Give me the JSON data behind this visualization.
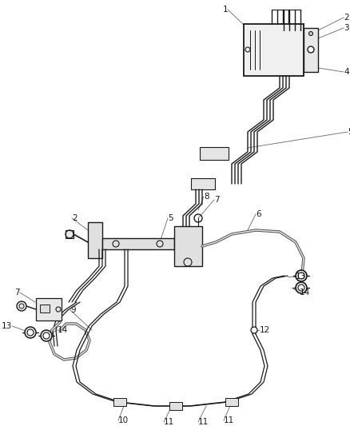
{
  "bg_color": "#ffffff",
  "line_color": "#1a1a1a",
  "figsize": [
    4.38,
    5.33
  ],
  "dpi": 100,
  "label_fontsize": 7.5,
  "label_color": "#1a1a1a",
  "thin_lw": 0.7,
  "tube_lw": 1.3,
  "flex_lw": 2.5
}
